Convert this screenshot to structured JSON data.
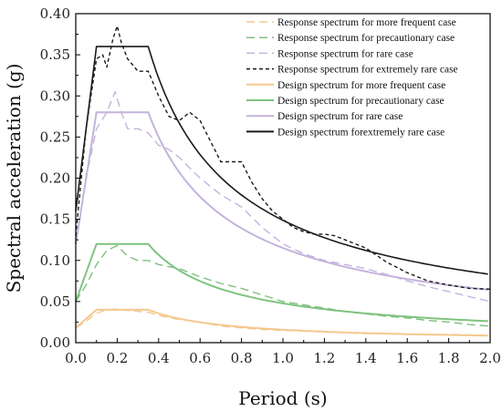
{
  "chart_data": {
    "type": "line",
    "title": "",
    "xlabel": "Period (s)",
    "ylabel": "Spectral acceleration (g)",
    "xlim": [
      0.0,
      2.0
    ],
    "ylim": [
      0.0,
      0.4
    ],
    "x_ticks": [
      "0.0",
      "0.2",
      "0.4",
      "0.6",
      "0.8",
      "1.0",
      "1.2",
      "1.4",
      "1.6",
      "1.8",
      "2.0"
    ],
    "y_ticks": [
      "0.00",
      "0.05",
      "0.10",
      "0.15",
      "0.20",
      "0.25",
      "0.30",
      "0.35",
      "0.40"
    ],
    "grid": false,
    "legend_position": "top-right",
    "series": [
      {
        "name": "Response spectrum for more frequent case",
        "color": "#f5c890",
        "dash": "dashed",
        "points": [
          [
            0.0,
            0.018
          ],
          [
            0.05,
            0.026
          ],
          [
            0.1,
            0.036
          ],
          [
            0.15,
            0.04
          ],
          [
            0.2,
            0.041
          ],
          [
            0.25,
            0.039
          ],
          [
            0.3,
            0.038
          ],
          [
            0.35,
            0.037
          ],
          [
            0.4,
            0.033
          ],
          [
            0.5,
            0.028
          ],
          [
            0.6,
            0.025
          ],
          [
            0.7,
            0.02
          ],
          [
            0.8,
            0.018
          ],
          [
            0.9,
            0.016
          ],
          [
            1.0,
            0.015
          ],
          [
            1.1,
            0.014
          ],
          [
            1.2,
            0.013
          ],
          [
            1.3,
            0.012
          ],
          [
            1.4,
            0.011
          ],
          [
            1.5,
            0.011
          ],
          [
            1.6,
            0.01
          ],
          [
            1.8,
            0.01
          ],
          [
            2.0,
            0.009
          ]
        ]
      },
      {
        "name": "Response spectrum for precautionary case",
        "color": "#7fbf7f",
        "dash": "dashed",
        "points": [
          [
            0.0,
            0.05
          ],
          [
            0.05,
            0.07
          ],
          [
            0.1,
            0.095
          ],
          [
            0.15,
            0.112
          ],
          [
            0.2,
            0.118
          ],
          [
            0.25,
            0.105
          ],
          [
            0.3,
            0.1
          ],
          [
            0.35,
            0.1
          ],
          [
            0.4,
            0.095
          ],
          [
            0.5,
            0.09
          ],
          [
            0.6,
            0.08
          ],
          [
            0.7,
            0.072
          ],
          [
            0.8,
            0.066
          ],
          [
            0.9,
            0.058
          ],
          [
            1.0,
            0.05
          ],
          [
            1.1,
            0.046
          ],
          [
            1.2,
            0.042
          ],
          [
            1.3,
            0.038
          ],
          [
            1.4,
            0.035
          ],
          [
            1.5,
            0.032
          ],
          [
            1.6,
            0.03
          ],
          [
            1.7,
            0.027
          ],
          [
            1.8,
            0.025
          ],
          [
            1.9,
            0.022
          ],
          [
            2.0,
            0.02
          ]
        ]
      },
      {
        "name": "Response spectrum for rare case",
        "color": "#c4b3dc",
        "dash": "dashed",
        "points": [
          [
            0.0,
            0.12
          ],
          [
            0.05,
            0.2
          ],
          [
            0.1,
            0.26
          ],
          [
            0.15,
            0.28
          ],
          [
            0.19,
            0.305
          ],
          [
            0.22,
            0.28
          ],
          [
            0.25,
            0.26
          ],
          [
            0.3,
            0.26
          ],
          [
            0.35,
            0.255
          ],
          [
            0.4,
            0.24
          ],
          [
            0.45,
            0.235
          ],
          [
            0.5,
            0.225
          ],
          [
            0.6,
            0.2
          ],
          [
            0.7,
            0.18
          ],
          [
            0.8,
            0.165
          ],
          [
            0.9,
            0.14
          ],
          [
            1.0,
            0.12
          ],
          [
            1.1,
            0.108
          ],
          [
            1.2,
            0.1
          ],
          [
            1.3,
            0.095
          ],
          [
            1.4,
            0.09
          ],
          [
            1.5,
            0.083
          ],
          [
            1.6,
            0.075
          ],
          [
            1.7,
            0.068
          ],
          [
            1.8,
            0.062
          ],
          [
            1.9,
            0.056
          ],
          [
            2.0,
            0.05
          ]
        ]
      },
      {
        "name": "Response spectrum for extremely rare case",
        "color": "#1a1a1a",
        "dash": "dashed",
        "points": [
          [
            0.0,
            0.13
          ],
          [
            0.05,
            0.26
          ],
          [
            0.1,
            0.345
          ],
          [
            0.13,
            0.35
          ],
          [
            0.15,
            0.335
          ],
          [
            0.18,
            0.37
          ],
          [
            0.2,
            0.385
          ],
          [
            0.22,
            0.365
          ],
          [
            0.25,
            0.345
          ],
          [
            0.3,
            0.33
          ],
          [
            0.35,
            0.33
          ],
          [
            0.4,
            0.3
          ],
          [
            0.45,
            0.275
          ],
          [
            0.5,
            0.27
          ],
          [
            0.55,
            0.28
          ],
          [
            0.6,
            0.27
          ],
          [
            0.65,
            0.245
          ],
          [
            0.7,
            0.22
          ],
          [
            0.75,
            0.22
          ],
          [
            0.8,
            0.22
          ],
          [
            0.85,
            0.195
          ],
          [
            0.9,
            0.175
          ],
          [
            0.95,
            0.16
          ],
          [
            1.0,
            0.15
          ],
          [
            1.05,
            0.14
          ],
          [
            1.1,
            0.135
          ],
          [
            1.15,
            0.132
          ],
          [
            1.2,
            0.132
          ],
          [
            1.25,
            0.13
          ],
          [
            1.3,
            0.125
          ],
          [
            1.4,
            0.115
          ],
          [
            1.5,
            0.098
          ],
          [
            1.6,
            0.085
          ],
          [
            1.7,
            0.075
          ],
          [
            1.8,
            0.07
          ],
          [
            1.9,
            0.066
          ],
          [
            2.0,
            0.065
          ]
        ]
      },
      {
        "name": "Design spectrum for more frequent case",
        "color": "#f5c890",
        "dash": "solid",
        "plateau": 0.04,
        "start": 0.018,
        "tg": 0.35,
        "end": 0.0085
      },
      {
        "name": "Design spectrum for precautionary case",
        "color": "#7fc37f",
        "dash": "solid",
        "plateau": 0.12,
        "start": 0.05,
        "tg": 0.35,
        "end": 0.026
      },
      {
        "name": "Design spectrum for rare case",
        "color": "#c4b3dc",
        "dash": "solid",
        "plateau": 0.28,
        "start": 0.12,
        "tg": 0.35,
        "end": 0.064
      },
      {
        "name": "Design spectrum forextremely rare case",
        "color": "#1a1a1a",
        "dash": "solid",
        "plateau": 0.36,
        "start": 0.16,
        "tg": 0.35,
        "end": 0.083
      }
    ]
  }
}
